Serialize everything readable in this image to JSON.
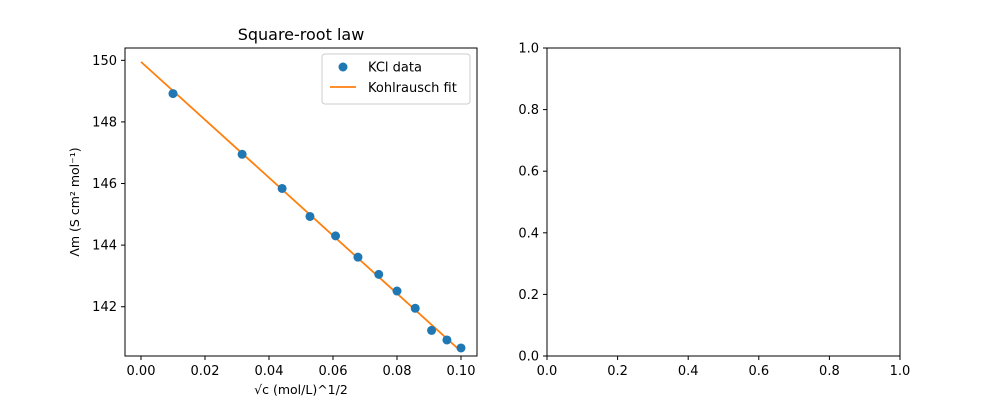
{
  "chart_data": [
    {
      "type": "scatter",
      "title": "Square-root law",
      "xlabel": "√c (mol/L)^1/2",
      "ylabel": "Λm (S cm² mol⁻¹)",
      "xlim": [
        -0.005,
        0.105
      ],
      "ylim": [
        140.4,
        150.4
      ],
      "xticks": [
        0.0,
        0.02,
        0.04,
        0.06,
        0.08,
        0.1
      ],
      "xtick_labels": [
        "0.00",
        "0.02",
        "0.04",
        "0.06",
        "0.08",
        "0.10"
      ],
      "yticks": [
        142,
        144,
        146,
        148,
        150
      ],
      "ytick_labels": [
        "142",
        "144",
        "146",
        "148",
        "150"
      ],
      "grid": false,
      "legend_position": "top-right",
      "series": [
        {
          "name": "KCl data",
          "kind": "scatter",
          "color": "#1f77b4",
          "points": [
            [
              0.01,
              148.92
            ],
            [
              0.0316,
              146.95
            ],
            [
              0.0441,
              145.84
            ],
            [
              0.0528,
              144.93
            ],
            [
              0.0608,
              144.3
            ],
            [
              0.0678,
              143.61
            ],
            [
              0.0743,
              143.05
            ],
            [
              0.08,
              142.51
            ],
            [
              0.0857,
              141.95
            ],
            [
              0.0908,
              141.23
            ],
            [
              0.0956,
              140.92
            ],
            [
              0.1,
              140.66
            ]
          ]
        },
        {
          "name": "Kohlrausch fit",
          "kind": "line",
          "color": "#ff7f0e",
          "points": [
            [
              0.0,
              149.95
            ],
            [
              0.1,
              140.55
            ]
          ]
        }
      ]
    },
    {
      "type": "scatter",
      "title": "",
      "xlabel": "",
      "ylabel": "",
      "xlim": [
        0.0,
        1.0
      ],
      "ylim": [
        0.0,
        1.0
      ],
      "xticks": [
        0.0,
        0.2,
        0.4,
        0.6,
        0.8,
        1.0
      ],
      "xtick_labels": [
        "0.0",
        "0.2",
        "0.4",
        "0.6",
        "0.8",
        "1.0"
      ],
      "yticks": [
        0.0,
        0.2,
        0.4,
        0.6,
        0.8,
        1.0
      ],
      "ytick_labels": [
        "0.0",
        "0.2",
        "0.4",
        "0.6",
        "0.8",
        "1.0"
      ],
      "grid": false,
      "series": []
    }
  ]
}
